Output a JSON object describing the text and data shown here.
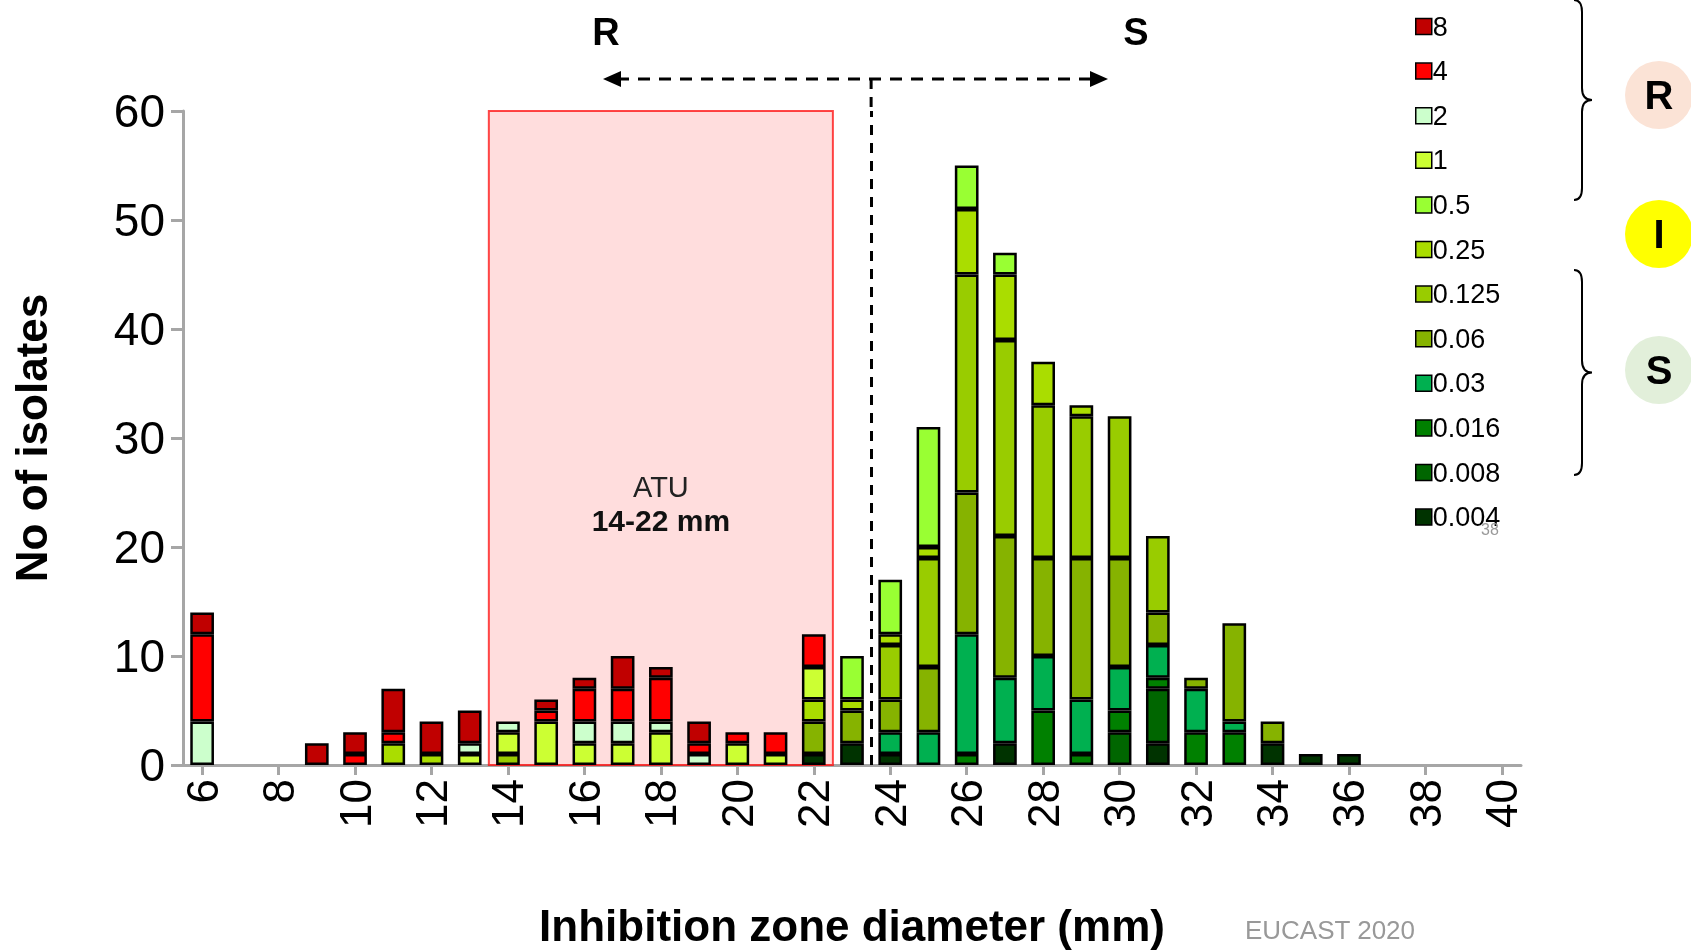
{
  "chart_data": {
    "type": "bar",
    "stacked": true,
    "xlabel": "Inhibition zone diameter (mm)",
    "ylabel": "No of isolates",
    "x": [
      6,
      9,
      10,
      11,
      12,
      13,
      14,
      15,
      16,
      17,
      18,
      19,
      20,
      21,
      22,
      23,
      24,
      25,
      26,
      27,
      28,
      29,
      30,
      31,
      32,
      33,
      34,
      35,
      36
    ],
    "xlim": [
      5.5,
      40.5
    ],
    "xticks": [
      6,
      8,
      10,
      12,
      14,
      16,
      18,
      20,
      22,
      24,
      26,
      28,
      30,
      32,
      34,
      36,
      38,
      40
    ],
    "ylim": [
      0,
      60
    ],
    "yticks": [
      0,
      10,
      20,
      30,
      40,
      50,
      60
    ],
    "grid": false,
    "legend": "right",
    "series": [
      {
        "name": "0.004",
        "color": "#003300",
        "values": [
          null,
          null,
          null,
          null,
          null,
          null,
          null,
          null,
          null,
          null,
          null,
          null,
          null,
          null,
          1,
          2,
          1,
          null,
          null,
          2,
          null,
          null,
          null,
          2,
          null,
          null,
          2,
          1,
          1
        ]
      },
      {
        "name": "0.008",
        "color": "#006600",
        "values": [
          null,
          null,
          null,
          null,
          null,
          null,
          null,
          null,
          null,
          null,
          null,
          null,
          null,
          null,
          null,
          null,
          null,
          null,
          null,
          null,
          null,
          null,
          3,
          5,
          null,
          null,
          null,
          null,
          null
        ]
      },
      {
        "name": "0.016",
        "color": "#008000",
        "values": [
          null,
          null,
          null,
          null,
          null,
          null,
          null,
          null,
          null,
          null,
          null,
          null,
          null,
          null,
          null,
          null,
          null,
          null,
          1,
          null,
          5,
          1,
          2,
          1,
          3,
          3,
          null,
          null,
          null
        ]
      },
      {
        "name": "0.03",
        "color": "#00b050",
        "values": [
          null,
          null,
          null,
          null,
          null,
          null,
          null,
          null,
          null,
          null,
          null,
          null,
          null,
          null,
          null,
          null,
          2,
          3,
          11,
          6,
          5,
          5,
          4,
          3,
          4,
          1,
          null,
          null,
          null
        ]
      },
      {
        "name": "0.06",
        "color": "#86b300",
        "values": [
          null,
          null,
          null,
          null,
          null,
          null,
          null,
          null,
          null,
          null,
          null,
          null,
          null,
          null,
          3,
          3,
          3,
          6,
          13,
          13,
          9,
          13,
          10,
          3,
          1,
          9,
          2,
          null,
          null
        ]
      },
      {
        "name": "0.125",
        "color": "#99cc00",
        "values": [
          null,
          null,
          null,
          null,
          null,
          null,
          1,
          null,
          null,
          null,
          null,
          null,
          null,
          null,
          null,
          null,
          5,
          10,
          20,
          18,
          14,
          13,
          13,
          7,
          null,
          null,
          null,
          null,
          null
        ]
      },
      {
        "name": "0.25",
        "color": "#aadd00",
        "values": [
          null,
          null,
          null,
          2,
          1,
          null,
          null,
          null,
          null,
          null,
          null,
          null,
          null,
          null,
          2,
          1,
          1,
          1,
          6,
          6,
          4,
          1,
          null,
          null,
          null,
          null,
          null,
          null,
          null
        ]
      },
      {
        "name": "0.5",
        "color": "#99ff33",
        "values": [
          null,
          null,
          null,
          null,
          null,
          null,
          null,
          null,
          null,
          null,
          null,
          null,
          null,
          null,
          null,
          4,
          5,
          11,
          4,
          2,
          null,
          null,
          null,
          null,
          null,
          null,
          null,
          null,
          null
        ]
      },
      {
        "name": "1",
        "color": "#ccff33",
        "values": [
          null,
          null,
          null,
          null,
          null,
          1,
          2,
          4,
          2,
          2,
          3,
          null,
          2,
          1,
          3,
          null,
          null,
          null,
          null,
          null,
          null,
          null,
          null,
          null,
          null,
          null,
          null,
          null,
          null
        ]
      },
      {
        "name": "2",
        "color": "#ccffcc",
        "values": [
          4,
          null,
          null,
          null,
          null,
          1,
          1,
          null,
          2,
          2,
          1,
          1,
          null,
          null,
          null,
          null,
          null,
          null,
          null,
          null,
          null,
          null,
          null,
          null,
          null,
          null,
          null,
          null,
          null
        ]
      },
      {
        "name": "4",
        "color": "#ff0000",
        "values": [
          8,
          null,
          1,
          1,
          null,
          null,
          null,
          1,
          3,
          3,
          4,
          1,
          1,
          2,
          3,
          null,
          null,
          null,
          null,
          null,
          null,
          null,
          null,
          null,
          null,
          null,
          null,
          null,
          null
        ]
      },
      {
        "name": "8",
        "color": "#c00000",
        "values": [
          2,
          2,
          2,
          4,
          3,
          3,
          null,
          1,
          1,
          3,
          1,
          2,
          null,
          null,
          null,
          null,
          null,
          null,
          null,
          null,
          null,
          null,
          null,
          null,
          null,
          null,
          null,
          null,
          null
        ]
      }
    ],
    "ref_lines": [
      {
        "axis": "x",
        "value": 23.5,
        "label": null,
        "line_style": "dashed",
        "color": "#000000"
      }
    ],
    "bands": [
      {
        "axis": "x",
        "from": 13.5,
        "to": 22.5,
        "label": "ATU\n14-22 mm",
        "color": "#ffd0d0"
      }
    ],
    "annotations": [
      "R",
      "S",
      "R",
      "I",
      "S",
      "EUCAST 2020",
      "38"
    ]
  }
}
